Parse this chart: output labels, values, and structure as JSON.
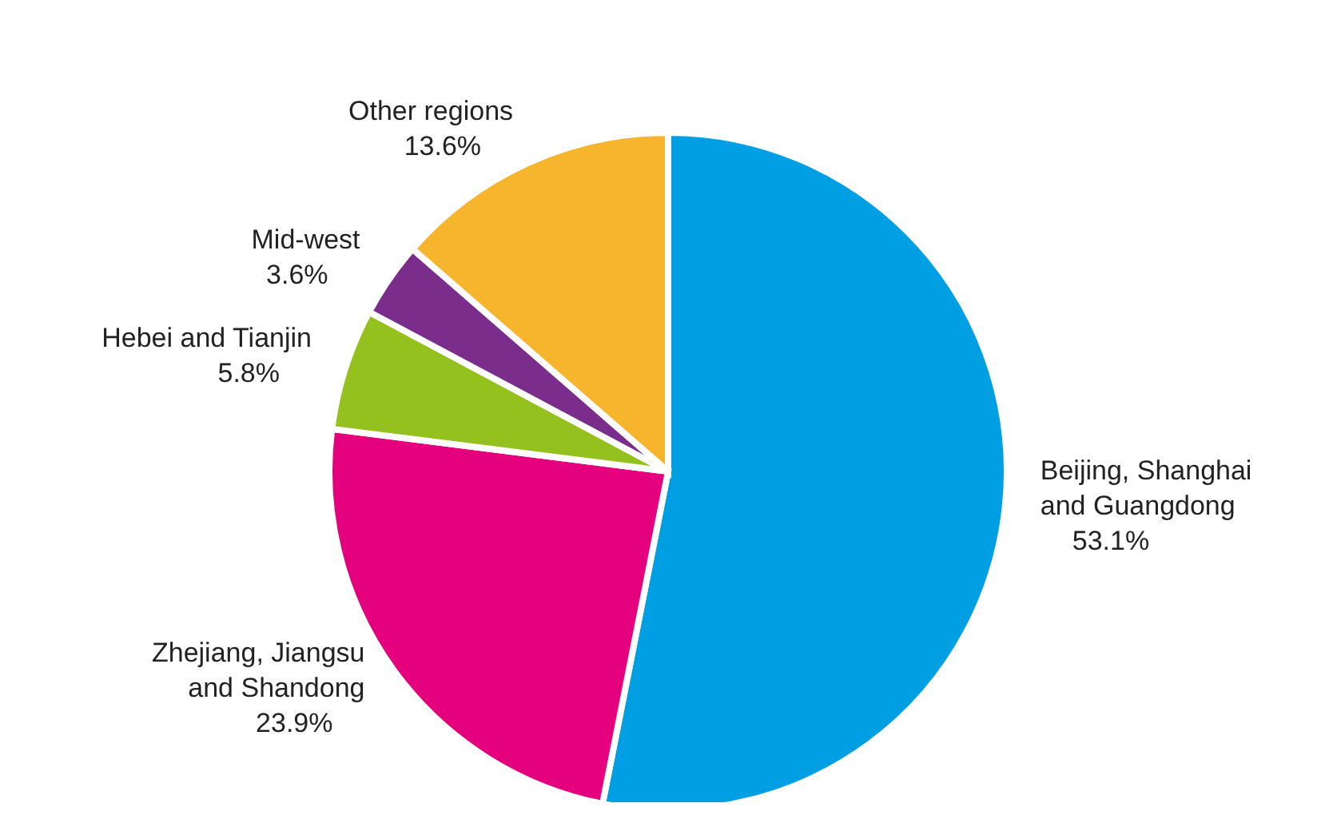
{
  "chart_data": {
    "type": "pie",
    "categories": [
      "Beijing, Shanghai and Guangdong",
      "Zhejiang, Jiangsu and Shandong",
      "Hebei and Tianjin",
      "Mid-west",
      "Other regions"
    ],
    "values": [
      53.1,
      23.9,
      5.8,
      3.6,
      13.6
    ],
    "colors": [
      "#009fe3",
      "#e5007d",
      "#95c11f",
      "#7b2d8b",
      "#f7b52d"
    ],
    "value_labels": [
      "53.1%",
      "23.9%",
      "5.8%",
      "3.6%",
      "13.6%"
    ],
    "legend": false
  }
}
